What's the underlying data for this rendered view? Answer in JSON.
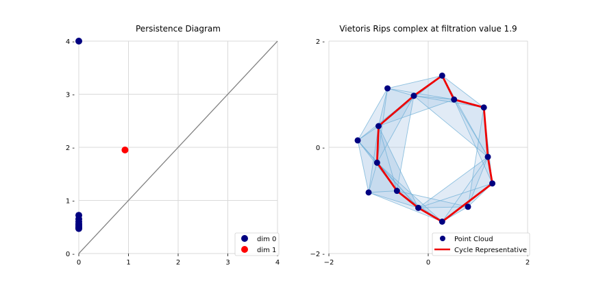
{
  "colors": {
    "point": "#000080",
    "dim1": "#ff0000",
    "diagonal": "#808080",
    "edge": "#6baed6",
    "fill": "#a6c8e8",
    "cycle": "#ee0000"
  },
  "chart_data": [
    {
      "type": "scatter",
      "title": "Persistence Diagram",
      "xlabel": "",
      "ylabel": "",
      "xlim": [
        0,
        4
      ],
      "ylim": [
        0,
        4
      ],
      "xticks": [
        "0",
        "1",
        "2",
        "3",
        "4"
      ],
      "yticks": [
        "0",
        "1",
        "2",
        "3",
        "4"
      ],
      "grid": true,
      "legend_placement": "bottom-right",
      "diagonal": [
        [
          0,
          0
        ],
        [
          4,
          4
        ]
      ],
      "series": [
        {
          "name": "dim 0",
          "points": [
            [
              0,
              4.0
            ],
            [
              0,
              0.72
            ],
            [
              0,
              0.65
            ],
            [
              0,
              0.6
            ],
            [
              0,
              0.56
            ],
            [
              0,
              0.53
            ],
            [
              0,
              0.5
            ],
            [
              0,
              0.48
            ],
            [
              0,
              0.47
            ]
          ]
        },
        {
          "name": "dim 1",
          "points": [
            [
              0.93,
              1.95
            ]
          ]
        }
      ]
    },
    {
      "type": "scatter",
      "title": "Vietoris Rips complex at filtration value 1.9",
      "xlabel": "",
      "ylabel": "",
      "xlim": [
        -2,
        2
      ],
      "ylim": [
        -2,
        2
      ],
      "xticks": [
        "−2",
        "0",
        "2"
      ],
      "yticks": [
        "−2",
        "0",
        "2"
      ],
      "grid": true,
      "legend_placement": "bottom-right",
      "series": [
        {
          "name": "Point Cloud",
          "points": [
            [
              0.28,
              1.35
            ],
            [
              0.52,
              0.9
            ],
            [
              1.12,
              0.75
            ],
            [
              1.2,
              -0.18
            ],
            [
              1.29,
              -0.68
            ],
            [
              0.8,
              -1.12
            ],
            [
              0.28,
              -1.4
            ],
            [
              -0.2,
              -1.14
            ],
            [
              -0.63,
              -0.82
            ],
            [
              -1.2,
              -0.85
            ],
            [
              -1.03,
              -0.29
            ],
            [
              -1.0,
              0.4
            ],
            [
              -1.42,
              0.13
            ],
            [
              -0.82,
              1.11
            ],
            [
              -0.29,
              0.97
            ]
          ]
        },
        {
          "name": "Cycle Representative",
          "path": [
            [
              0.28,
              1.35
            ],
            [
              0.52,
              0.9
            ],
            [
              1.12,
              0.75
            ],
            [
              1.2,
              -0.18
            ],
            [
              1.29,
              -0.68
            ],
            [
              0.28,
              -1.4
            ],
            [
              -0.2,
              -1.14
            ],
            [
              -0.63,
              -0.82
            ],
            [
              -1.03,
              -0.29
            ],
            [
              -1.0,
              0.4
            ],
            [
              -0.29,
              0.97
            ],
            [
              0.28,
              1.35
            ]
          ]
        }
      ]
    }
  ]
}
